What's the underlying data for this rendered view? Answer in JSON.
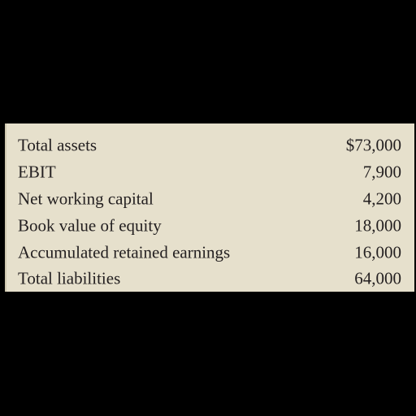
{
  "table": {
    "rows": [
      {
        "label": "Total assets",
        "value": "$73,000"
      },
      {
        "label": "EBIT",
        "value": "7,900"
      },
      {
        "label": "Net working capital",
        "value": "4,200"
      },
      {
        "label": "Book value of equity",
        "value": "18,000"
      },
      {
        "label": "Accumulated retained earnings",
        "value": "16,000"
      },
      {
        "label": "Total liabilities",
        "value": "64,000"
      }
    ]
  },
  "colors": {
    "background": "#000000",
    "panel": "#e6e0cc",
    "text": "#231f20"
  }
}
